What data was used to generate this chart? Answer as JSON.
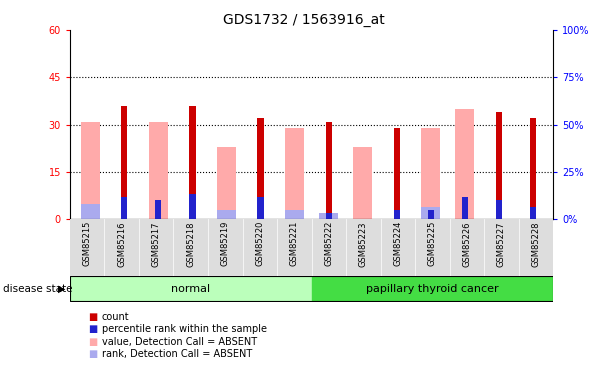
{
  "title": "GDS1732 / 1563916_at",
  "samples": [
    "GSM85215",
    "GSM85216",
    "GSM85217",
    "GSM85218",
    "GSM85219",
    "GSM85220",
    "GSM85221",
    "GSM85222",
    "GSM85223",
    "GSM85224",
    "GSM85225",
    "GSM85226",
    "GSM85227",
    "GSM85228"
  ],
  "red_values": [
    0,
    36,
    0,
    36,
    0,
    32,
    0,
    31,
    0,
    29,
    0,
    0,
    34,
    32
  ],
  "blue_values": [
    0,
    7,
    6,
    8,
    0,
    7,
    0,
    2,
    0,
    3,
    3,
    7,
    6,
    4
  ],
  "pink_values": [
    31,
    0,
    31,
    0,
    23,
    0,
    29,
    0,
    23,
    0,
    29,
    35,
    0,
    0
  ],
  "lightblue_values": [
    5,
    0,
    0,
    0,
    3,
    0,
    3,
    2,
    0,
    0,
    4,
    0,
    0,
    0
  ],
  "normal_group": [
    0,
    1,
    2,
    3,
    4,
    5,
    6
  ],
  "cancer_group": [
    7,
    8,
    9,
    10,
    11,
    12,
    13
  ],
  "ylim_left": [
    0,
    60
  ],
  "ylim_right": [
    0,
    100
  ],
  "yticks_left": [
    0,
    15,
    30,
    45,
    60
  ],
  "yticks_right": [
    0,
    25,
    50,
    75,
    100
  ],
  "ytick_labels_left": [
    "0",
    "15",
    "30",
    "45",
    "60"
  ],
  "ytick_labels_right": [
    "0%",
    "25%",
    "50%",
    "75%",
    "100%"
  ],
  "red_color": "#CC0000",
  "blue_color": "#2222CC",
  "pink_color": "#FFAAAA",
  "lightblue_color": "#AAAAEE",
  "normal_bg": "#BBFFBB",
  "cancer_bg": "#44DD44",
  "label_bg": "#DDDDDD",
  "disease_label": "disease state",
  "normal_label": "normal",
  "cancer_label": "papillary thyroid cancer",
  "legend_items": [
    "count",
    "percentile rank within the sample",
    "value, Detection Call = ABSENT",
    "rank, Detection Call = ABSENT"
  ],
  "legend_colors": [
    "#CC0000",
    "#2222CC",
    "#FFAAAA",
    "#AAAAEE"
  ]
}
